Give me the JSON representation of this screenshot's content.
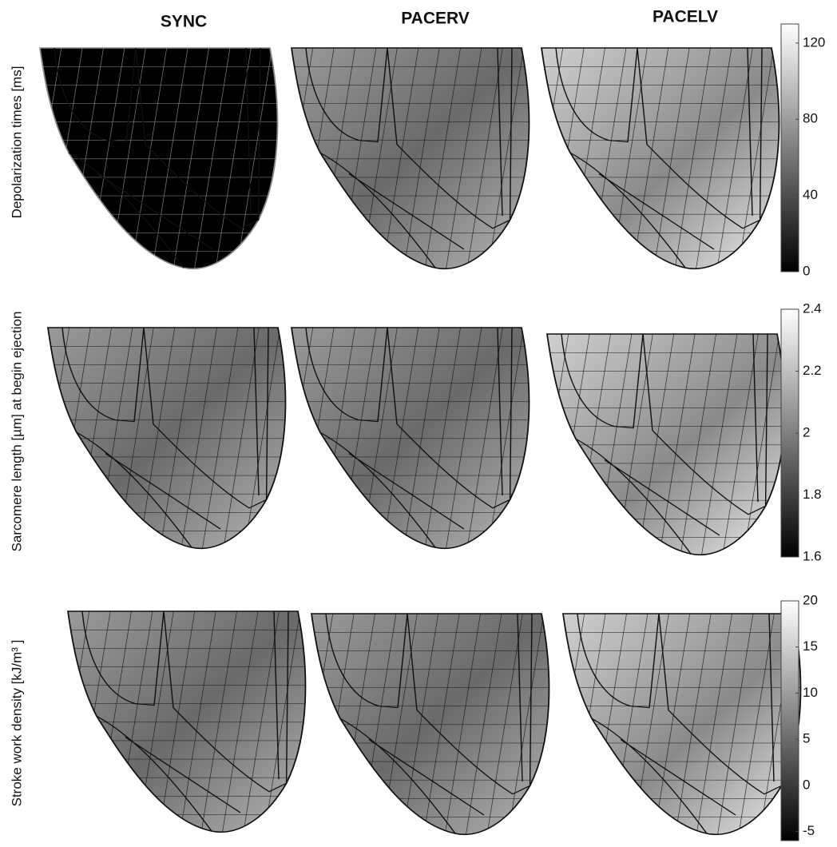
{
  "columns": [
    "SYNC",
    "PACERV",
    "PACELV"
  ],
  "rows": [
    {
      "label": "Depolarization times [ms]",
      "colorbar": {
        "lim": [
          0,
          130
        ],
        "ticks": [
          0,
          40,
          80,
          120
        ]
      }
    },
    {
      "label": "Sarcomere length [µm] at begin ejection",
      "colorbar": {
        "lim": [
          1.6,
          2.4
        ],
        "ticks": [
          1.6,
          1.8,
          2,
          2.2,
          2.4
        ]
      }
    },
    {
      "label": "Stroke work density [kJ/m³ ]",
      "colorbar": {
        "lim": [
          -6,
          20
        ],
        "ticks": [
          -5,
          0,
          5,
          10,
          15,
          20
        ]
      }
    }
  ]
}
